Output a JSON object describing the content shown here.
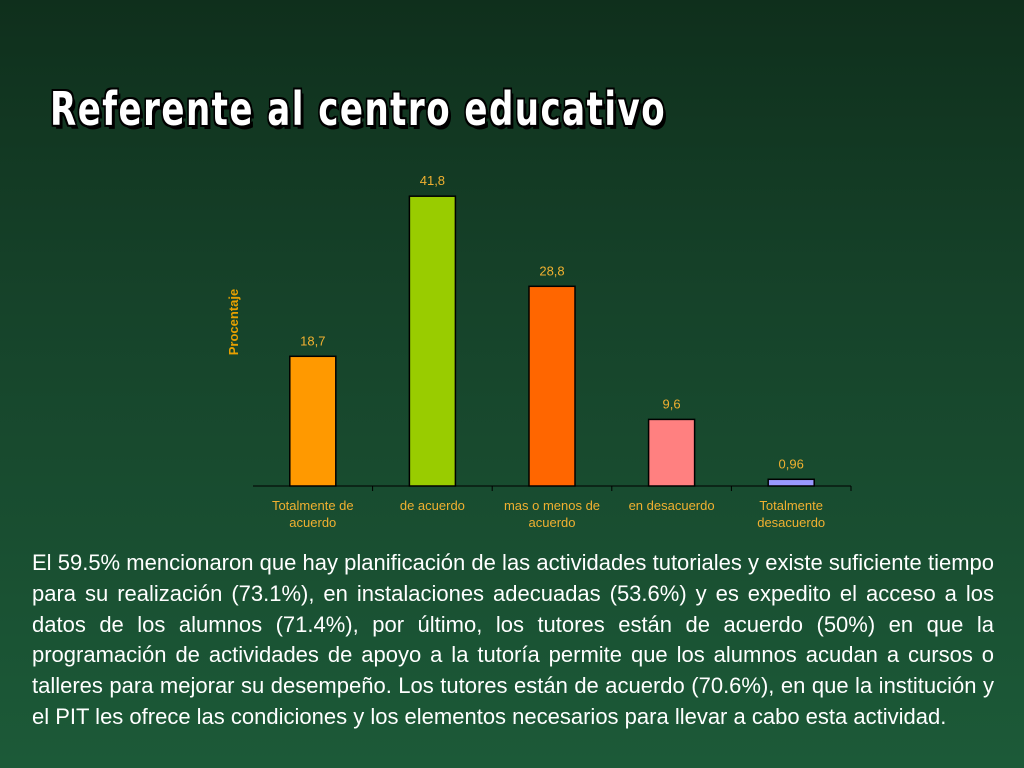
{
  "slide": {
    "title": "Referente al centro educativo",
    "body": "El 59.5% mencionaron que hay  planificación de las actividades tutoriales y existe suficiente tiempo para su realización (73.1%), en instalaciones adecuadas (53.6%) y es expedito el acceso a los datos de los alumnos (71.4%), por último, los tutores están de acuerdo (50%) en que la programación de actividades de apoyo a la tutoría permite que los alumnos acudan a cursos o talleres para mejorar su desempeño. Los tutores están de acuerdo (70.6%), en que la institución y el PIT les ofrece las condiciones y los elementos necesarios para llevar a cabo esta actividad."
  },
  "chart_data": {
    "type": "bar",
    "title": "",
    "xlabel": "",
    "ylabel": "Procentaje",
    "ylim": [
      0,
      45
    ],
    "grid": false,
    "legend": "none",
    "categories": [
      [
        "Totalmente de",
        "acuerdo"
      ],
      [
        "de acuerdo"
      ],
      [
        "mas o menos de",
        "acuerdo"
      ],
      [
        "en desacuerdo"
      ],
      [
        "Totalmente",
        "desacuerdo"
      ]
    ],
    "values": [
      18.7,
      41.8,
      28.8,
      9.6,
      0.96
    ],
    "data_labels": [
      "18,7",
      "41,8",
      "28,8",
      "9,6",
      "0,96"
    ],
    "colors": [
      "#ff9900",
      "#99cc00",
      "#ff6600",
      "#ff8080",
      "#9999ff"
    ]
  }
}
